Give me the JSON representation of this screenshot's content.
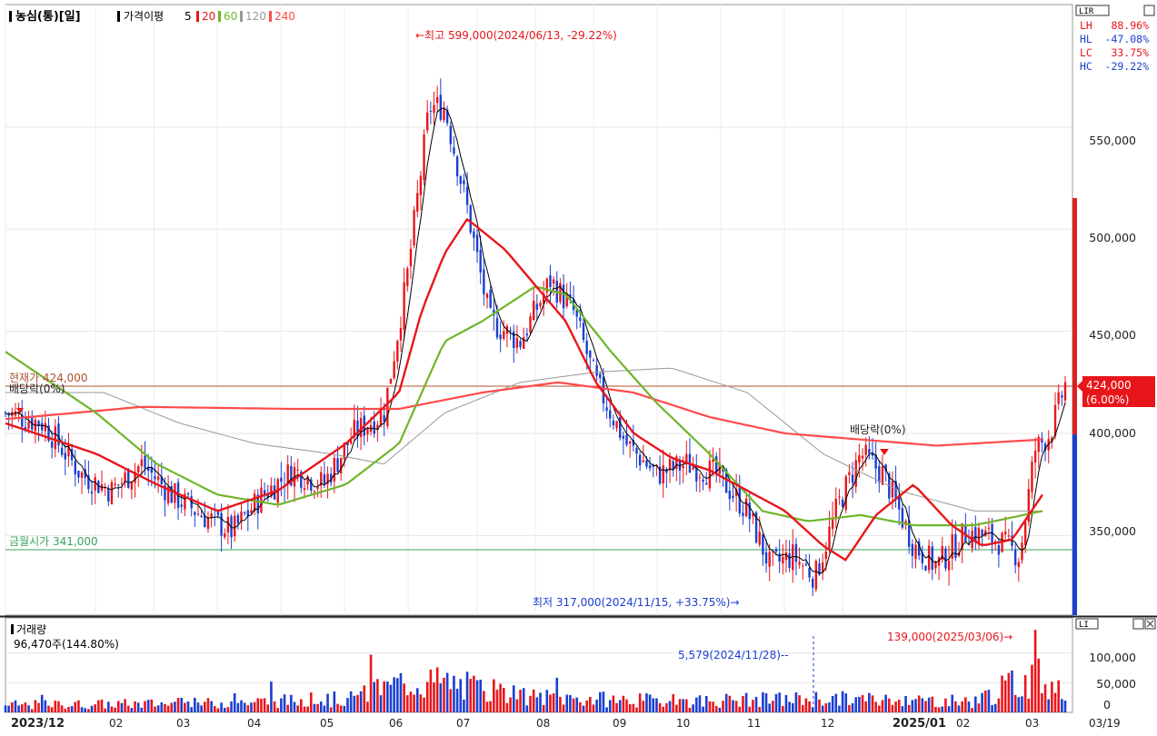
{
  "header": {
    "stock": "농심(통)[일]",
    "ma_label": "가격이평",
    "ma_periods": [
      {
        "label": "5",
        "color": "#000000"
      },
      {
        "label": "20",
        "color": "#e8161b"
      },
      {
        "label": "60",
        "color": "#6fb62b"
      },
      {
        "label": "120",
        "color": "#999999"
      },
      {
        "label": "240",
        "color": "#ff4a4a"
      }
    ]
  },
  "panel_controls": {
    "main": "LIR",
    "volume": "LI"
  },
  "stats": [
    {
      "label": "LH",
      "value": "88.96%"
    },
    {
      "label": "HL",
      "value": "-47.08%"
    },
    {
      "label": "LC",
      "value": "33.75%"
    },
    {
      "label": "HC",
      "value": "-29.22%"
    }
  ],
  "annotations": {
    "high": "←최고 599,000(2024/06/13, -29.22%)",
    "low": "최저 317,000(2024/11/15, +33.75%)→",
    "current": "현재가 424,000",
    "monthly_open": "금월시가 341,000",
    "ex_div_1": "배당락(0%)",
    "ex_div_2": "배당락(0%)",
    "price_tag": "424,000",
    "price_tag_pct": "(6.00%)",
    "volume_label": "거래량",
    "volume_value": "96,470주(144.80%)",
    "volume_high": "139,000(2025/03/06)→",
    "volume_low": "5,579(2024/11/28)-- "
  },
  "chart_data": {
    "type": "candlestick",
    "y_axis": {
      "ticks": [
        "550,000",
        "500,000",
        "450,000",
        "400,000",
        "350,000"
      ],
      "ylim": [
        311000,
        610000
      ]
    },
    "volume_axis": {
      "ticks": [
        "100,000",
        "50,000",
        "0"
      ],
      "ylim": [
        0,
        150000
      ]
    },
    "x_labels": [
      "2023/12",
      "02",
      "03",
      "04",
      "05",
      "06",
      "07",
      "08",
      "09",
      "10",
      "11",
      "12",
      "2025/01",
      "02",
      "03"
    ],
    "x_end_label": "03/19",
    "current_price": 424000,
    "monthly_open": 341000,
    "series": [
      {
        "name": "5",
        "color": "#000000"
      },
      {
        "name": "20",
        "color": "#e8161b"
      },
      {
        "name": "60",
        "color": "#6fb62b"
      },
      {
        "name": "120",
        "color": "#999999"
      },
      {
        "name": "240",
        "color": "#ff4a4a"
      }
    ],
    "ma_points": {
      "20": [
        [
          2023.92,
          405000
        ],
        [
          2024.04,
          390000
        ],
        [
          2024.12,
          375000
        ],
        [
          2024.2,
          362000
        ],
        [
          2024.28,
          372000
        ],
        [
          2024.37,
          395000
        ],
        [
          2024.44,
          420000
        ],
        [
          2024.47,
          460000
        ],
        [
          2024.5,
          488000
        ],
        [
          2024.53,
          505000
        ],
        [
          2024.58,
          490000
        ],
        [
          2024.66,
          455000
        ],
        [
          2024.7,
          425000
        ],
        [
          2024.75,
          400000
        ],
        [
          2024.8,
          388000
        ],
        [
          2024.85,
          382000
        ],
        [
          2024.9,
          372000
        ],
        [
          2024.95,
          362000
        ],
        [
          2025.0,
          345000
        ],
        [
          2025.03,
          338000
        ],
        [
          2025.07,
          360000
        ],
        [
          2025.12,
          375000
        ],
        [
          2025.17,
          355000
        ],
        [
          2025.21,
          345000
        ],
        [
          2025.25,
          348000
        ],
        [
          2025.29,
          370000
        ]
      ],
      "60": [
        [
          2023.92,
          440000
        ],
        [
          2024.04,
          410000
        ],
        [
          2024.12,
          385000
        ],
        [
          2024.2,
          370000
        ],
        [
          2024.28,
          365000
        ],
        [
          2024.37,
          375000
        ],
        [
          2024.44,
          395000
        ],
        [
          2024.5,
          445000
        ],
        [
          2024.55,
          455000
        ],
        [
          2024.62,
          472000
        ],
        [
          2024.66,
          468000
        ],
        [
          2024.72,
          440000
        ],
        [
          2024.78,
          415000
        ],
        [
          2024.85,
          390000
        ],
        [
          2024.92,
          362000
        ],
        [
          2024.98,
          357000
        ],
        [
          2025.05,
          360000
        ],
        [
          2025.12,
          355000
        ],
        [
          2025.2,
          355000
        ],
        [
          2025.29,
          362000
        ]
      ],
      "120": [
        [
          2023.92,
          420000
        ],
        [
          2024.05,
          420000
        ],
        [
          2024.15,
          405000
        ],
        [
          2024.25,
          395000
        ],
        [
          2024.35,
          390000
        ],
        [
          2024.42,
          385000
        ],
        [
          2024.5,
          410000
        ],
        [
          2024.6,
          425000
        ],
        [
          2024.7,
          430000
        ],
        [
          2024.8,
          432000
        ],
        [
          2024.9,
          420000
        ],
        [
          2025.0,
          390000
        ],
        [
          2025.1,
          372000
        ],
        [
          2025.2,
          362000
        ],
        [
          2025.29,
          362000
        ]
      ],
      "240": [
        [
          2023.92,
          407000
        ],
        [
          2024.1,
          413000
        ],
        [
          2024.3,
          412000
        ],
        [
          2024.44,
          412000
        ],
        [
          2024.55,
          420000
        ],
        [
          2024.65,
          425000
        ],
        [
          2024.75,
          420000
        ],
        [
          2024.85,
          408000
        ],
        [
          2024.95,
          400000
        ],
        [
          2025.05,
          397000
        ],
        [
          2025.15,
          394000
        ],
        [
          2025.29,
          397000
        ]
      ]
    },
    "price_path": [
      [
        2023.92,
        410000
      ],
      [
        2023.97,
        405000
      ],
      [
        2024.02,
        380000
      ],
      [
        2024.06,
        372000
      ],
      [
        2024.1,
        385000
      ],
      [
        2024.14,
        370000
      ],
      [
        2024.18,
        360000
      ],
      [
        2024.22,
        352000
      ],
      [
        2024.26,
        370000
      ],
      [
        2024.3,
        382000
      ],
      [
        2024.34,
        375000
      ],
      [
        2024.38,
        400000
      ],
      [
        2024.42,
        410000
      ],
      [
        2024.45,
        475000
      ],
      [
        2024.48,
        560000
      ],
      [
        2024.5,
        560000
      ],
      [
        2024.53,
        510000
      ],
      [
        2024.56,
        455000
      ],
      [
        2024.6,
        445000
      ],
      [
        2024.64,
        475000
      ],
      [
        2024.67,
        460000
      ],
      [
        2024.7,
        425000
      ],
      [
        2024.74,
        395000
      ],
      [
        2024.78,
        380000
      ],
      [
        2024.82,
        385000
      ],
      [
        2024.86,
        380000
      ],
      [
        2024.9,
        362000
      ],
      [
        2024.93,
        335000
      ],
      [
        2024.96,
        340000
      ],
      [
        2024.99,
        330000
      ],
      [
        2025.02,
        365000
      ],
      [
        2025.05,
        390000
      ],
      [
        2025.08,
        380000
      ],
      [
        2025.12,
        345000
      ],
      [
        2025.15,
        335000
      ],
      [
        2025.19,
        352000
      ],
      [
        2025.23,
        348000
      ],
      [
        2025.26,
        340000
      ],
      [
        2025.28,
        392000
      ],
      [
        2025.3,
        400000
      ],
      [
        2025.32,
        424000
      ]
    ],
    "volume_profile": [
      [
        2023.92,
        12000
      ],
      [
        2024.2,
        15000
      ],
      [
        2024.38,
        22000
      ],
      [
        2024.45,
        50000
      ],
      [
        2024.5,
        48000
      ],
      [
        2024.6,
        25000
      ],
      [
        2024.8,
        18000
      ],
      [
        2024.9,
        20000
      ],
      [
        2025.0,
        22000
      ],
      [
        2025.1,
        20000
      ],
      [
        2025.2,
        18000
      ],
      [
        2025.28,
        60000
      ],
      [
        2025.32,
        40000
      ]
    ]
  }
}
